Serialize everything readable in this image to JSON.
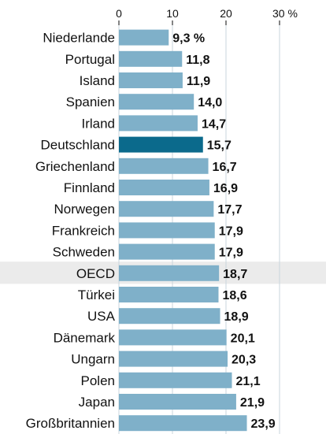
{
  "chart_data": {
    "type": "bar",
    "orientation": "horizontal",
    "categories": [
      "Niederlande",
      "Portugal",
      "Island",
      "Spanien",
      "Irland",
      "Deutschland",
      "Griechenland",
      "Finnland",
      "Norwegen",
      "Frankreich",
      "Schweden",
      "OECD",
      "Türkei",
      "USA",
      "Dänemark",
      "Ungarn",
      "Polen",
      "Japan",
      "Großbritannien"
    ],
    "values": [
      9.3,
      11.8,
      11.9,
      14.0,
      14.7,
      15.7,
      16.7,
      16.9,
      17.7,
      17.9,
      17.9,
      18.7,
      18.6,
      18.9,
      20.1,
      20.3,
      21.1,
      21.9,
      23.9
    ],
    "data_labels": [
      "9,3 %",
      "11,8",
      "11,9",
      "14,0",
      "14,7",
      "15,7",
      "16,7",
      "16,9",
      "17,7",
      "17,9",
      "17,9",
      "18,7",
      "18,6",
      "18,9",
      "20,1",
      "20,3",
      "21,1",
      "21,9",
      "23,9"
    ],
    "xlim": [
      0,
      30
    ],
    "xticks": [
      0,
      10,
      20,
      30
    ],
    "xtick_labels": [
      "0",
      "10",
      "20",
      "30 %"
    ],
    "highlight_category": "Deutschland",
    "highlight_row": "OECD",
    "grid": true,
    "colors": {
      "bar": "#7fb0c9",
      "bar_highlight": "#0b6a8c",
      "row_band": "#ebebeb",
      "gridline": "#c8d6de",
      "text": "#111111"
    }
  }
}
